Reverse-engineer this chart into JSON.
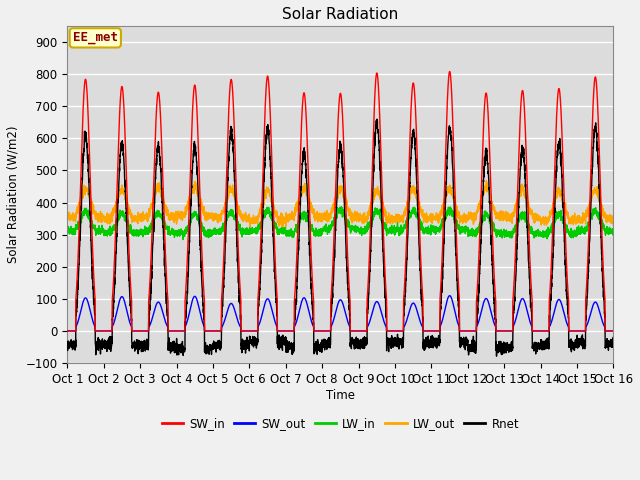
{
  "title": "Solar Radiation",
  "xlabel": "Time",
  "ylabel": "Solar Radiation (W/m2)",
  "ylim": [
    -100,
    950
  ],
  "xlim": [
    0,
    15
  ],
  "xtick_labels": [
    "Oct 1",
    "Oct 2",
    "Oct 3",
    "Oct 4",
    "Oct 5",
    "Oct 6",
    "Oct 7",
    "Oct 8",
    "Oct 9",
    "Oct 10",
    "Oct 11",
    "Oct 12",
    "Oct 13",
    "Oct 14",
    "Oct 15",
    "Oct 16"
  ],
  "series": {
    "SW_in": {
      "color": "#ff0000",
      "lw": 1.0
    },
    "SW_out": {
      "color": "#0000ff",
      "lw": 1.0
    },
    "LW_in": {
      "color": "#00cc00",
      "lw": 1.0
    },
    "LW_out": {
      "color": "#ffa500",
      "lw": 1.0
    },
    "Rnet": {
      "color": "#000000",
      "lw": 1.0
    }
  },
  "annotation": {
    "text": "EE_met",
    "fontsize": 9,
    "text_color": "#8b0000",
    "bg_color": "#ffffcc",
    "border_color": "#ccaa00"
  },
  "plot_bg_color": "#dcdcdc",
  "fig_bg_color": "#f0f0f0",
  "grid_color": "#ffffff",
  "title_fontsize": 11,
  "n_days": 15,
  "pts_per_day": 288
}
